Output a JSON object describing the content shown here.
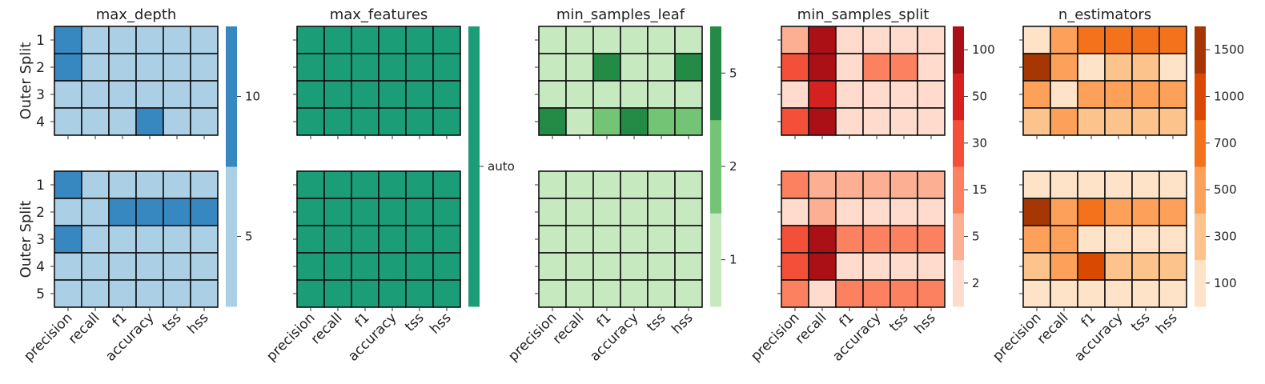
{
  "chart_data": [
    {
      "type": "heatmap",
      "title": "max_depth",
      "ylabel": "Outer Split",
      "x": [
        "precision",
        "recall",
        "f1",
        "accuracy",
        "tss",
        "hss"
      ],
      "rows_top": [
        "1",
        "2",
        "3",
        "4"
      ],
      "rows_bottom": [
        "1",
        "2",
        "3",
        "4",
        "5"
      ],
      "levels": [
        "5",
        "10"
      ],
      "colorbar_ticks": [
        "5",
        "10"
      ],
      "colors": [
        "#abd0e6",
        "#3787c0"
      ],
      "top": [
        [
          1,
          0,
          0,
          0,
          0,
          0
        ],
        [
          1,
          0,
          0,
          0,
          0,
          0
        ],
        [
          0,
          0,
          0,
          0,
          0,
          0
        ],
        [
          0,
          0,
          0,
          1,
          0,
          0
        ]
      ],
      "bottom": [
        [
          1,
          0,
          0,
          0,
          0,
          0
        ],
        [
          0,
          0,
          1,
          1,
          1,
          1
        ],
        [
          1,
          0,
          0,
          0,
          0,
          0
        ],
        [
          0,
          0,
          0,
          0,
          0,
          0
        ],
        [
          0,
          0,
          0,
          0,
          0,
          0
        ]
      ]
    },
    {
      "type": "heatmap",
      "title": "max_features",
      "ylabel": "",
      "x": [
        "precision",
        "recall",
        "f1",
        "accuracy",
        "tss",
        "hss"
      ],
      "rows_top": [
        "1",
        "2",
        "3",
        "4"
      ],
      "rows_bottom": [
        "1",
        "2",
        "3",
        "4",
        "5"
      ],
      "levels": [
        "auto"
      ],
      "colorbar_ticks": [
        "auto"
      ],
      "colors": [
        "#1b9e77"
      ],
      "top": [
        [
          0,
          0,
          0,
          0,
          0,
          0
        ],
        [
          0,
          0,
          0,
          0,
          0,
          0
        ],
        [
          0,
          0,
          0,
          0,
          0,
          0
        ],
        [
          0,
          0,
          0,
          0,
          0,
          0
        ]
      ],
      "bottom": [
        [
          0,
          0,
          0,
          0,
          0,
          0
        ],
        [
          0,
          0,
          0,
          0,
          0,
          0
        ],
        [
          0,
          0,
          0,
          0,
          0,
          0
        ],
        [
          0,
          0,
          0,
          0,
          0,
          0
        ],
        [
          0,
          0,
          0,
          0,
          0,
          0
        ]
      ]
    },
    {
      "type": "heatmap",
      "title": "min_samples_leaf",
      "ylabel": "",
      "x": [
        "precision",
        "recall",
        "f1",
        "accuracy",
        "tss",
        "hss"
      ],
      "rows_top": [
        "1",
        "2",
        "3",
        "4"
      ],
      "rows_bottom": [
        "1",
        "2",
        "3",
        "4",
        "5"
      ],
      "levels": [
        "1",
        "2",
        "5"
      ],
      "colorbar_ticks": [
        "1",
        "2",
        "5"
      ],
      "colors": [
        "#c7e9c0",
        "#74c476",
        "#238b45"
      ],
      "top": [
        [
          0,
          0,
          0,
          0,
          0,
          0
        ],
        [
          0,
          0,
          2,
          0,
          0,
          2
        ],
        [
          0,
          0,
          0,
          0,
          0,
          0
        ],
        [
          2,
          0,
          1,
          2,
          1,
          1
        ]
      ],
      "bottom": [
        [
          0,
          0,
          0,
          0,
          0,
          0
        ],
        [
          0,
          0,
          0,
          0,
          0,
          0
        ],
        [
          0,
          0,
          0,
          0,
          0,
          0
        ],
        [
          0,
          0,
          0,
          0,
          0,
          0
        ],
        [
          0,
          0,
          0,
          0,
          0,
          0
        ]
      ]
    },
    {
      "type": "heatmap",
      "title": "min_samples_split",
      "ylabel": "",
      "x": [
        "precision",
        "recall",
        "f1",
        "accuracy",
        "tss",
        "hss"
      ],
      "rows_top": [
        "1",
        "2",
        "3",
        "4"
      ],
      "rows_bottom": [
        "1",
        "2",
        "3",
        "4",
        "5"
      ],
      "levels": [
        "2",
        "5",
        "15",
        "30",
        "50",
        "100"
      ],
      "colorbar_ticks": [
        "2",
        "5",
        "15",
        "30",
        "50",
        "100"
      ],
      "colors": [
        "#fedbcc",
        "#fcaf93",
        "#fc8161",
        "#f44f39",
        "#d52221",
        "#aa1016"
      ],
      "top": [
        [
          1,
          5,
          0,
          0,
          0,
          0
        ],
        [
          3,
          5,
          0,
          2,
          2,
          0
        ],
        [
          0,
          4,
          0,
          0,
          0,
          0
        ],
        [
          3,
          5,
          0,
          0,
          0,
          0
        ]
      ],
      "bottom": [
        [
          2,
          1,
          1,
          1,
          1,
          1
        ],
        [
          0,
          1,
          0,
          0,
          0,
          0
        ],
        [
          3,
          5,
          2,
          2,
          2,
          2
        ],
        [
          3,
          5,
          0,
          0,
          0,
          0
        ],
        [
          2,
          0,
          2,
          2,
          2,
          2
        ]
      ]
    },
    {
      "type": "heatmap",
      "title": "n_estimators",
      "ylabel": "",
      "x": [
        "precision",
        "recall",
        "f1",
        "accuracy",
        "tss",
        "hss"
      ],
      "rows_top": [
        "1",
        "2",
        "3",
        "4"
      ],
      "rows_bottom": [
        "1",
        "2",
        "3",
        "4",
        "5"
      ],
      "levels": [
        "100",
        "300",
        "500",
        "700",
        "1000",
        "1500"
      ],
      "colorbar_ticks": [
        "100",
        "300",
        "500",
        "700",
        "1000",
        "1500"
      ],
      "colors": [
        "#fee3c8",
        "#fdc38d",
        "#fda05a",
        "#f4721b",
        "#da4902",
        "#a63603"
      ],
      "top": [
        [
          0,
          2,
          3,
          3,
          3,
          3
        ],
        [
          5,
          2,
          0,
          1,
          1,
          0
        ],
        [
          2,
          0,
          2,
          2,
          2,
          2
        ],
        [
          1,
          2,
          1,
          1,
          1,
          1
        ]
      ],
      "bottom": [
        [
          0,
          0,
          0,
          0,
          0,
          0
        ],
        [
          5,
          2,
          3,
          2,
          2,
          2
        ],
        [
          2,
          2,
          0,
          0,
          0,
          0
        ],
        [
          1,
          2,
          4,
          1,
          1,
          1
        ],
        [
          0,
          0,
          0,
          0,
          0,
          0
        ]
      ]
    }
  ]
}
